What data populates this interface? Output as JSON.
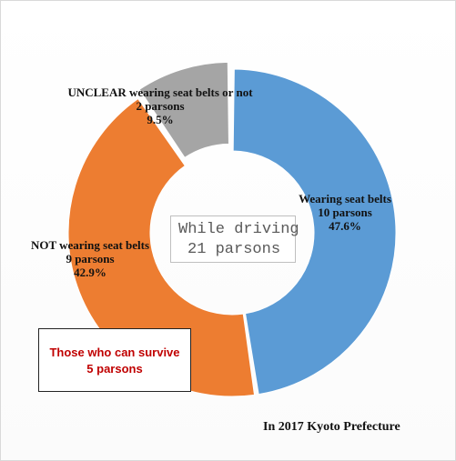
{
  "chart_data": {
    "type": "pie",
    "style": "donut",
    "categories": [
      "Wearing seat belts",
      "NOT wearing seat belts",
      "UNCLEAR wearing seat belts or not"
    ],
    "values": [
      10,
      9,
      2
    ],
    "counts": [
      "10 parsons",
      "9 parsons",
      "2 parsons"
    ],
    "percents": [
      "47.6%",
      "42.9%",
      "9.5%"
    ],
    "colors": [
      "#5b9bd5",
      "#ed7d31",
      "#a5a5a5"
    ],
    "exploded": "UNCLEAR wearing seat belts or not",
    "legend": "none"
  },
  "center_label": {
    "line1": "While driving",
    "line2": "21 parsons"
  },
  "callout": {
    "line1": "Those who can survive",
    "line2": "5 parsons"
  },
  "footnote": "In 2017  Kyoto Prefecture"
}
